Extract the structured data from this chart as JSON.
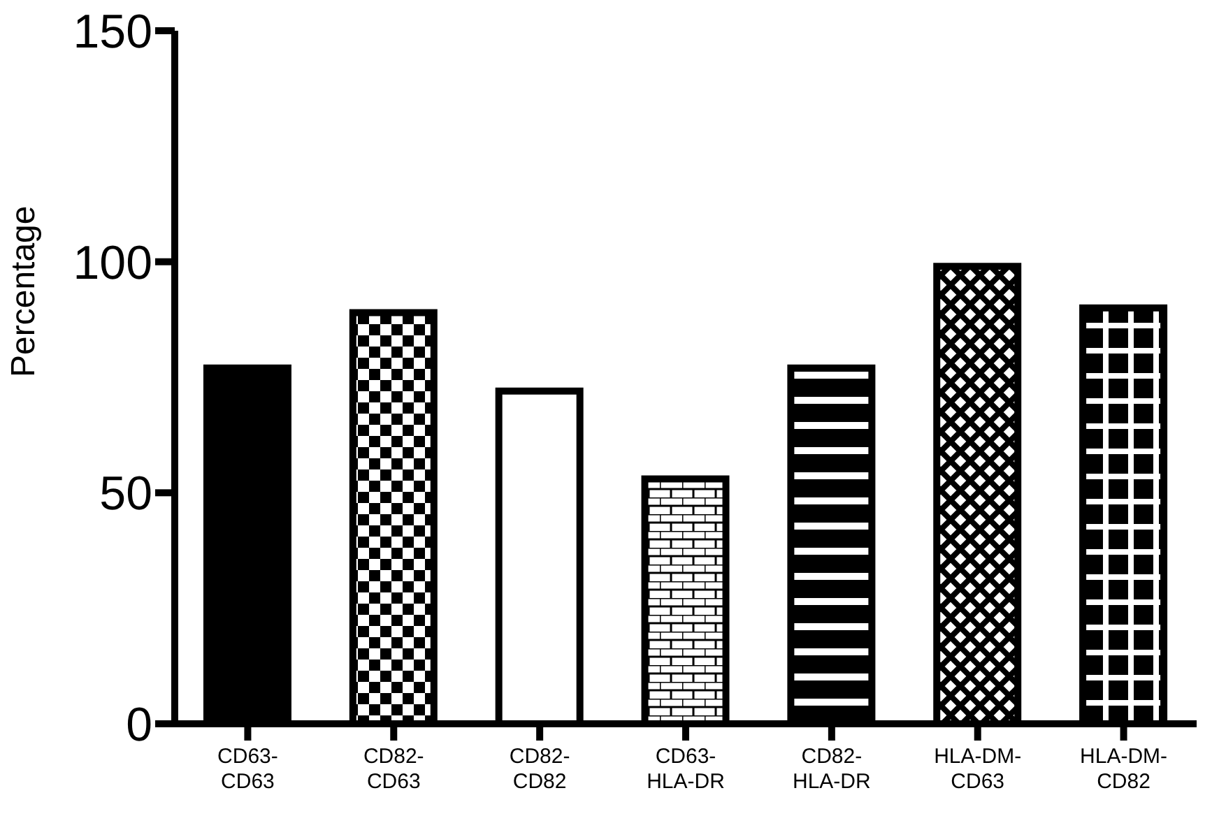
{
  "chart_data": {
    "type": "bar",
    "ylabel": "Percentage",
    "categories": [
      "CD63-CD63",
      "CD82-CD63",
      "CD82-CD82",
      "CD63-HLA-DR",
      "CD82-HLA-DR",
      "HLA-DM-CD63",
      "HLA-DM-CD82"
    ],
    "values": [
      77,
      89,
      72,
      53,
      77,
      99,
      90
    ],
    "color": "#000000",
    "ylim": [
      0,
      150
    ],
    "yticks": [
      0,
      50,
      100,
      150
    ]
  }
}
